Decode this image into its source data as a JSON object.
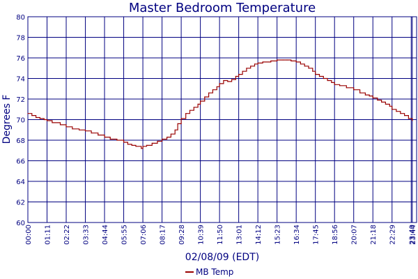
{
  "chart_data": {
    "type": "line",
    "title": "Master Bedroom Temperature",
    "xlabel": "02/08/09 (EDT)",
    "ylabel": "Degrees F",
    "ylim": [
      60,
      80
    ],
    "yticks": [
      "60",
      "62",
      "64",
      "66",
      "68",
      "70",
      "72",
      "74",
      "76",
      "78",
      "80"
    ],
    "xticks": [
      "00:00",
      "01:11",
      "02:22",
      "03:33",
      "04:44",
      "05:55",
      "07:06",
      "08:17",
      "09:28",
      "10:39",
      "11:50",
      "13:01",
      "14:12",
      "15:23",
      "16:34",
      "17:45",
      "18:56",
      "20:07",
      "21:18",
      "22:29",
      "23:40",
      "23:44"
    ],
    "grid": true,
    "legend_position": "bottom-center",
    "step": true,
    "colors": {
      "series": "#990000",
      "axes": "#000080"
    },
    "series": [
      {
        "name": "MB Temp",
        "x": [
          "00:00",
          "00:15",
          "00:30",
          "00:45",
          "01:00",
          "01:11",
          "01:30",
          "02:00",
          "02:22",
          "02:45",
          "03:10",
          "03:33",
          "03:55",
          "04:20",
          "04:44",
          "05:05",
          "05:30",
          "05:55",
          "06:10",
          "06:25",
          "06:40",
          "07:00",
          "07:06",
          "07:20",
          "07:40",
          "08:00",
          "08:17",
          "08:35",
          "08:50",
          "09:05",
          "09:15",
          "09:28",
          "09:45",
          "10:00",
          "10:15",
          "10:30",
          "10:39",
          "10:55",
          "11:10",
          "11:25",
          "11:40",
          "11:50",
          "12:05",
          "12:20",
          "12:35",
          "12:50",
          "13:01",
          "13:15",
          "13:30",
          "13:45",
          "14:00",
          "14:12",
          "14:30",
          "15:00",
          "15:23",
          "15:45",
          "16:00",
          "16:15",
          "16:34",
          "16:50",
          "17:05",
          "17:20",
          "17:35",
          "17:45",
          "18:00",
          "18:15",
          "18:30",
          "18:45",
          "18:56",
          "19:15",
          "19:40",
          "20:07",
          "20:30",
          "20:50",
          "21:05",
          "21:18",
          "21:35",
          "21:50",
          "22:05",
          "22:20",
          "22:29",
          "22:45",
          "23:00",
          "23:15",
          "23:30",
          "23:44"
        ],
        "values": [
          70.6,
          70.4,
          70.2,
          70.1,
          70.0,
          69.9,
          69.7,
          69.5,
          69.3,
          69.1,
          69.0,
          68.9,
          68.7,
          68.5,
          68.3,
          68.1,
          68.0,
          67.8,
          67.6,
          67.5,
          67.4,
          67.2,
          67.4,
          67.5,
          67.7,
          67.9,
          68.1,
          68.3,
          68.6,
          69.0,
          69.6,
          70.1,
          70.6,
          70.9,
          71.2,
          71.5,
          71.8,
          72.2,
          72.6,
          72.9,
          73.2,
          73.5,
          73.8,
          73.7,
          73.9,
          74.2,
          74.4,
          74.7,
          75.0,
          75.2,
          75.4,
          75.5,
          75.6,
          75.7,
          75.8,
          75.8,
          75.8,
          75.7,
          75.6,
          75.4,
          75.2,
          75.0,
          74.7,
          74.4,
          74.2,
          74.0,
          73.8,
          73.6,
          73.4,
          73.3,
          73.1,
          72.9,
          72.6,
          72.4,
          72.3,
          72.1,
          71.9,
          71.7,
          71.5,
          71.3,
          71.0,
          70.8,
          70.6,
          70.4,
          70.1,
          69.9
        ]
      }
    ]
  }
}
